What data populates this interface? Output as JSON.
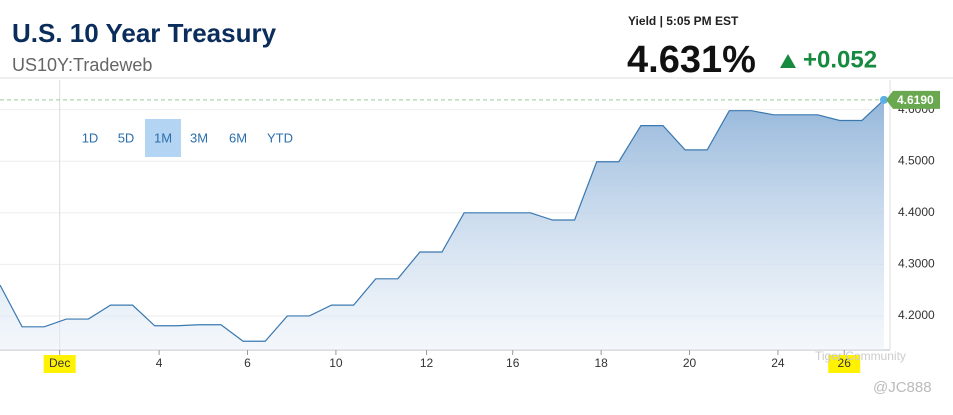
{
  "header": {
    "title": "U.S. 10 Year Treasury",
    "symbol": "US10Y:Tradeweb",
    "yield_label": "Yield | 5:05 PM EST",
    "price": "4.631%",
    "change": "+0.052"
  },
  "ranges": [
    "1D",
    "5D",
    "1M",
    "3M",
    "6M",
    "YTD"
  ],
  "active_range": 2,
  "watermark": [
    "Tiger Community",
    "@JC888"
  ],
  "chart_data": {
    "type": "area",
    "color": "#3a78b0",
    "grid": true,
    "values": [
      4.26,
      4.179,
      4.179,
      4.194,
      4.194,
      4.221,
      4.221,
      4.181,
      4.181,
      4.183,
      4.183,
      4.151,
      4.151,
      4.2,
      4.2,
      4.221,
      4.221,
      4.272,
      4.272,
      4.324,
      4.324,
      4.4,
      4.4,
      4.4,
      4.4,
      4.386,
      4.386,
      4.499,
      4.499,
      4.569,
      4.569,
      4.522,
      4.522,
      4.598,
      4.598,
      4.59,
      4.59,
      4.59,
      4.579,
      4.579,
      4.619
    ],
    "last_value_label": "4.6190",
    "xlim": [
      0,
      40
    ],
    "xticks": [
      {
        "value": 2.7,
        "label": "Dec"
      },
      {
        "value": 7.2,
        "label": "4"
      },
      {
        "value": 11.2,
        "label": "6"
      },
      {
        "value": 15.2,
        "label": "10"
      },
      {
        "value": 19.3,
        "label": "12"
      },
      {
        "value": 23.2,
        "label": "16"
      },
      {
        "value": 27.2,
        "label": "18"
      },
      {
        "value": 31.2,
        "label": "20"
      },
      {
        "value": 35.2,
        "label": "24"
      },
      {
        "value": 38.2,
        "label": "26"
      }
    ],
    "ylim": [
      4.134,
      4.64
    ],
    "yticks": [
      {
        "value": 4.2,
        "label": "4.2000"
      },
      {
        "value": 4.3,
        "label": "4.3000"
      },
      {
        "value": 4.4,
        "label": "4.4000"
      },
      {
        "value": 4.5,
        "label": "4.5000"
      },
      {
        "value": 4.6,
        "label": "4.6000"
      }
    ]
  }
}
